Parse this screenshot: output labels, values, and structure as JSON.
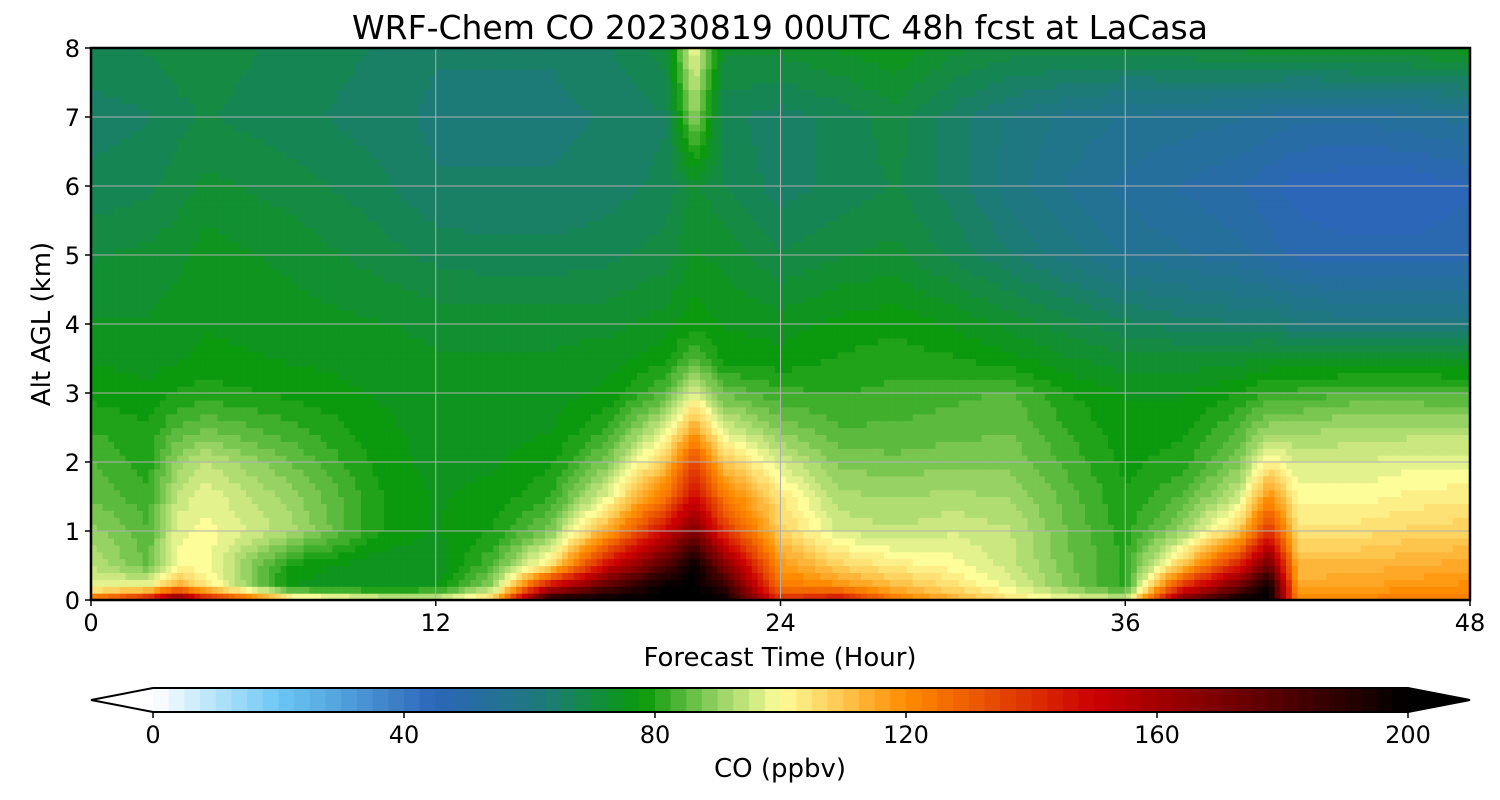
{
  "chart_data": {
    "type": "heatmap",
    "title": "WRF-Chem CO  20230819 00UTC 48h fcst at LaCasa",
    "xlabel": "Forecast Time (Hour)",
    "ylabel": "Alt AGL (km)",
    "xlim": [
      0,
      48
    ],
    "ylim": [
      0,
      8
    ],
    "x_ticks": [
      0,
      12,
      24,
      36,
      48
    ],
    "y_ticks": [
      0,
      1,
      2,
      3,
      4,
      5,
      6,
      7,
      8
    ],
    "grid": true,
    "colorbar": {
      "label": "CO  (ppbv)",
      "range": [
        0,
        200
      ],
      "ticks": [
        0,
        40,
        80,
        120,
        160,
        200
      ],
      "extend": "both",
      "orientation": "horizontal",
      "stops": [
        {
          "value": 0,
          "color": "#ffffff"
        },
        {
          "value": 20,
          "color": "#6cc8f5"
        },
        {
          "value": 45,
          "color": "#2c66b8"
        },
        {
          "value": 62,
          "color": "#1d7a7a"
        },
        {
          "value": 78,
          "color": "#0a9a0a"
        },
        {
          "value": 90,
          "color": "#96d264"
        },
        {
          "value": 100,
          "color": "#fdfd9a"
        },
        {
          "value": 120,
          "color": "#ff8c00"
        },
        {
          "value": 150,
          "color": "#cc0000"
        },
        {
          "value": 175,
          "color": "#660000"
        },
        {
          "value": 200,
          "color": "#000000"
        }
      ]
    },
    "x_hours": [
      0,
      2,
      3,
      4,
      7,
      10,
      12,
      14,
      16,
      18,
      20,
      21,
      22,
      24,
      26,
      28,
      30,
      32,
      34,
      36,
      38,
      40,
      41,
      42,
      44,
      46,
      48
    ],
    "y_km": [
      0,
      0.2,
      0.5,
      1,
      1.5,
      2,
      2.5,
      3,
      3.5,
      4,
      5,
      6,
      7,
      8
    ],
    "co_ppbv": [
      [
        130,
        150,
        180,
        150,
        110,
        100,
        98,
        110,
        200,
        200,
        200,
        200,
        200,
        140,
        150,
        125,
        115,
        105,
        100,
        96,
        170,
        200,
        200,
        120,
        122,
        124,
        125
      ],
      [
        97,
        99,
        115,
        104,
        76,
        74,
        76,
        90,
        150,
        180,
        200,
        200,
        190,
        125,
        120,
        112,
        105,
        98,
        88,
        80,
        140,
        175,
        200,
        115,
        116,
        118,
        120
      ],
      [
        94,
        86,
        100,
        100,
        78,
        74,
        74,
        84,
        105,
        150,
        180,
        200,
        170,
        118,
        108,
        103,
        100,
        95,
        87,
        81,
        110,
        145,
        175,
        112,
        112,
        114,
        115
      ],
      [
        90,
        84,
        98,
        100,
        92,
        79,
        76,
        79,
        88,
        115,
        150,
        170,
        140,
        108,
        96,
        94,
        96,
        94,
        86,
        80,
        90,
        110,
        140,
        105,
        105,
        107,
        108
      ],
      [
        86,
        82,
        94,
        98,
        90,
        79,
        76,
        77,
        81,
        98,
        125,
        150,
        125,
        104,
        92,
        91,
        92,
        91,
        85,
        79,
        84,
        95,
        120,
        100,
        100,
        102,
        103
      ],
      [
        84,
        80,
        90,
        94,
        86,
        78,
        75,
        76,
        78,
        88,
        110,
        135,
        110,
        96,
        88,
        87,
        88,
        88,
        83,
        78,
        80,
        88,
        102,
        96,
        96,
        98,
        98
      ],
      [
        81,
        79,
        84,
        86,
        82,
        77,
        75,
        75,
        76,
        81,
        96,
        115,
        96,
        88,
        84,
        84,
        85,
        86,
        81,
        77,
        78,
        84,
        90,
        90,
        92,
        92,
        92
      ],
      [
        78,
        77,
        79,
        80,
        78,
        76,
        75,
        75,
        75,
        77,
        84,
        98,
        86,
        82,
        81,
        82,
        83,
        84,
        79,
        76,
        76,
        79,
        82,
        82,
        84,
        84,
        83
      ],
      [
        76,
        75,
        76,
        77,
        76,
        75,
        74,
        74,
        74,
        75,
        78,
        84,
        78,
        77,
        79,
        80,
        79,
        77,
        74,
        72,
        72,
        73,
        74,
        74,
        74,
        74,
        74
      ],
      [
        74,
        74,
        75,
        76,
        75,
        74,
        73,
        73,
        73,
        73,
        75,
        78,
        76,
        75,
        77,
        78,
        76,
        73,
        70,
        67,
        65,
        64,
        64,
        62,
        60,
        60,
        60
      ],
      [
        71,
        72,
        73,
        75,
        73,
        70,
        68,
        67,
        67,
        68,
        70,
        74,
        73,
        69,
        71,
        72,
        68,
        64,
        60,
        56,
        54,
        52,
        50,
        48,
        47,
        47,
        48
      ],
      [
        67,
        68,
        70,
        72,
        70,
        67,
        64,
        64,
        64,
        65,
        67,
        72,
        69,
        65,
        67,
        69,
        65,
        60,
        56,
        53,
        51,
        49,
        47,
        45,
        44,
        44,
        46
      ],
      [
        65,
        66,
        68,
        69,
        67,
        65,
        63,
        63,
        63,
        64,
        66,
        90,
        67,
        65,
        67,
        70,
        65,
        61,
        58,
        56,
        55,
        54,
        53,
        52,
        52,
        53,
        55
      ],
      [
        68,
        69,
        70,
        70,
        68,
        66,
        64,
        64,
        64,
        66,
        70,
        100,
        72,
        72,
        74,
        76,
        72,
        70,
        70,
        70,
        71,
        72,
        73,
        73,
        74,
        74,
        75
      ]
    ]
  }
}
